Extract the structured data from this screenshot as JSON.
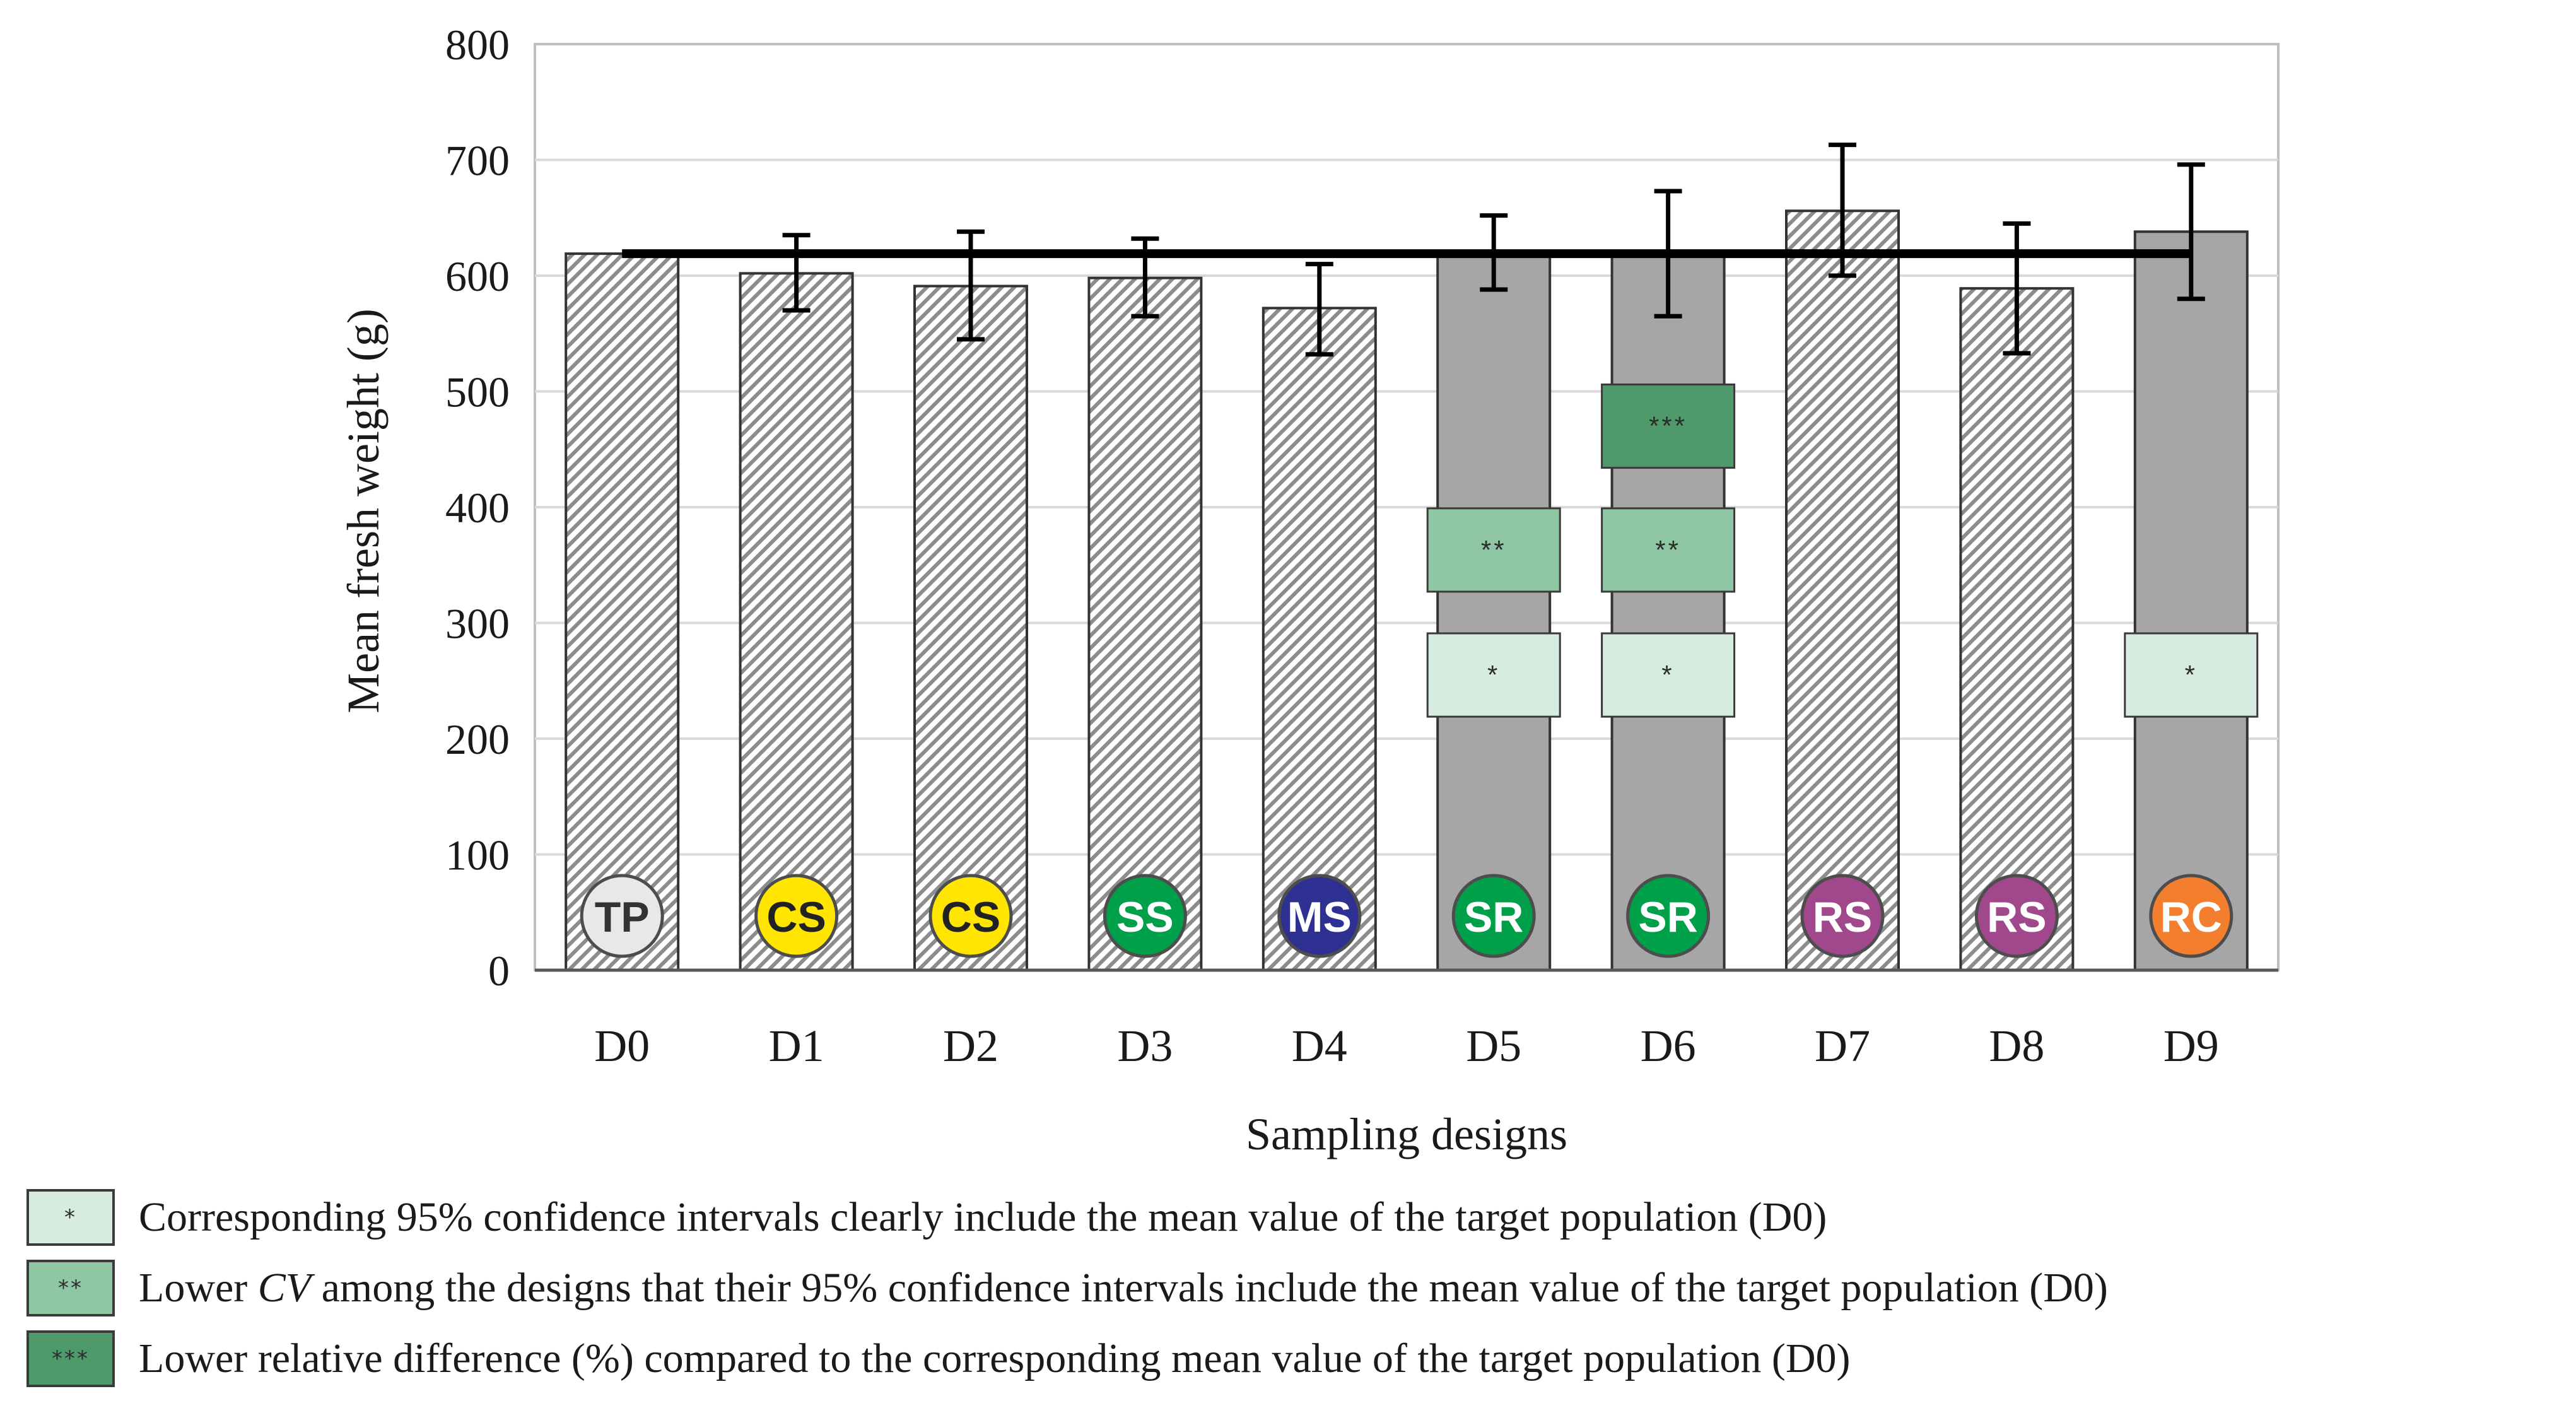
{
  "colors": {
    "grid": "#d9d9d9",
    "plot_border": "#bfbfbf",
    "gray_bar": "#a6a6a6",
    "hatch": "#8c8c8c",
    "mean_line": "#000000",
    "marker_1": "#d6ece0",
    "marker_2": "#8fc6a3",
    "marker_3": "#4e9a6a",
    "icon_colors": {
      "TP": "#e8e8e8",
      "CS": "#ffe500",
      "SS": "#00a04a",
      "MS": "#2e3192",
      "SR": "#00a04a",
      "RS": "#a1478c",
      "RC": "#f37f2e"
    },
    "icon_text": {
      "TP": "#333333",
      "CS": "#222222",
      "default": "#ffffff"
    }
  },
  "chart_data": {
    "type": "bar",
    "title": "",
    "xlabel": "Sampling designs",
    "ylabel": "Mean fresh weight (g)",
    "ylim": [
      0,
      800
    ],
    "yticks": [
      0,
      100,
      200,
      300,
      400,
      500,
      600,
      700,
      800
    ],
    "grid": true,
    "categories": [
      "D0",
      "D1",
      "D2",
      "D3",
      "D4",
      "D5",
      "D6",
      "D7",
      "D8",
      "D9"
    ],
    "values": [
      619,
      602,
      591,
      598,
      572,
      620,
      619,
      656,
      589,
      638
    ],
    "error_low": [
      null,
      570,
      545,
      565,
      532,
      588,
      565,
      600,
      533,
      580
    ],
    "error_high": [
      null,
      635,
      638,
      632,
      610,
      652,
      673,
      713,
      645,
      696
    ],
    "fill": [
      "hatched",
      "hatched",
      "hatched",
      "hatched",
      "hatched",
      "solid-gray",
      "solid-gray",
      "hatched",
      "hatched",
      "solid-gray"
    ],
    "design_codes": [
      "TP",
      "CS",
      "CS",
      "SS",
      "MS",
      "SR",
      "SR",
      "RS",
      "RS",
      "RC"
    ],
    "reference_line": {
      "value": 619,
      "label": "mean value of the target population (D0)"
    },
    "markers": [
      {
        "category": "D5",
        "level": 1,
        "center": 255,
        "symbol": "*"
      },
      {
        "category": "D5",
        "level": 2,
        "center": 363,
        "symbol": "**"
      },
      {
        "category": "D6",
        "level": 1,
        "center": 255,
        "symbol": "*"
      },
      {
        "category": "D6",
        "level": 2,
        "center": 363,
        "symbol": "**"
      },
      {
        "category": "D6",
        "level": 3,
        "center": 470,
        "symbol": "***"
      },
      {
        "category": "D9",
        "level": 1,
        "center": 255,
        "symbol": "*"
      }
    ]
  },
  "legend": [
    {
      "symbol": "*",
      "level": 1,
      "text": "Corresponding 95% confidence intervals clearly include the mean value of the target population (D0)"
    },
    {
      "symbol": "**",
      "level": 2,
      "text_before": "Lower ",
      "text_italic": "CV",
      "text_after": " among the designs that their 95% confidence intervals include the mean value of the target population (D0)"
    },
    {
      "symbol": "***",
      "level": 3,
      "text": "Lower relative difference (%) compared to the corresponding mean value of the target population (D0)"
    }
  ]
}
